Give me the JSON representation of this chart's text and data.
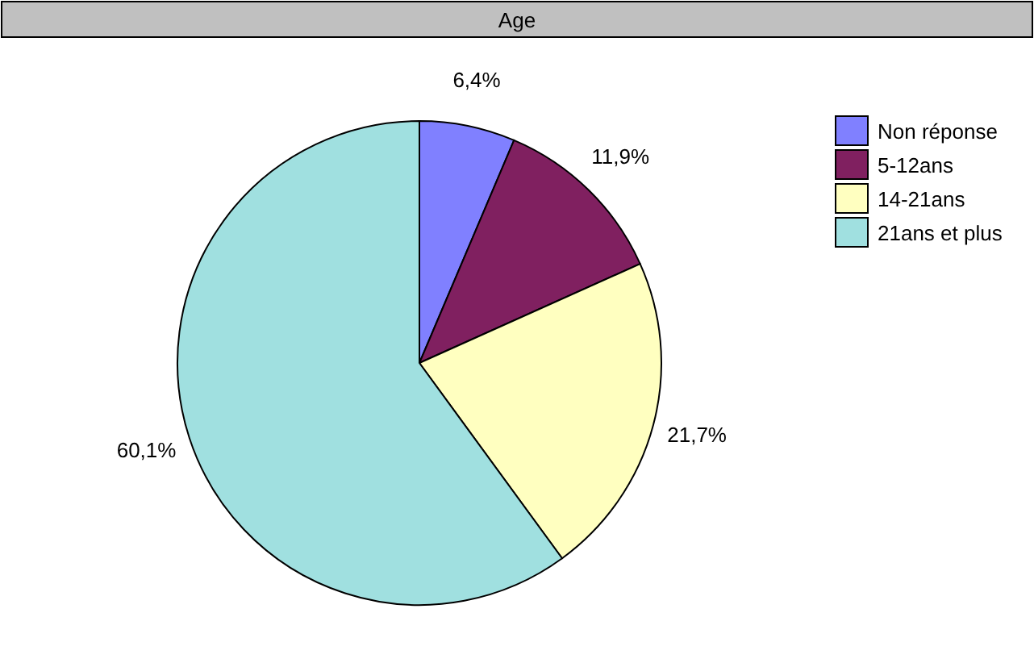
{
  "chart_data": {
    "type": "pie",
    "title": "Age",
    "categories": [
      "Non réponse",
      "5-12ans",
      "14-21ans",
      "21ans et plus"
    ],
    "values": [
      6.4,
      11.9,
      21.7,
      60.1
    ],
    "value_labels": [
      "6,4%",
      "11,9%",
      "21,7%",
      "60,1%"
    ],
    "colors": [
      "#8080ff",
      "#802060",
      "#ffffc0",
      "#a0e0e0"
    ],
    "legend": "top right"
  }
}
